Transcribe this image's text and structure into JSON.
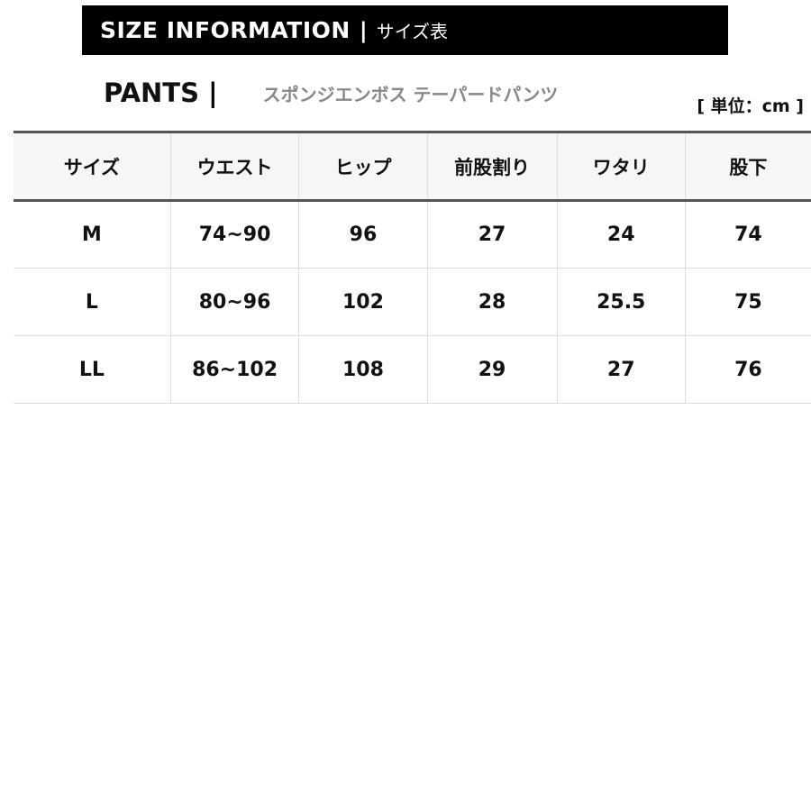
{
  "banner": {
    "title": "SIZE INFORMATION",
    "separator": "|",
    "subtitle": "サイズ表"
  },
  "product": {
    "category": "PANTS",
    "separator": "|",
    "name": "スポンジエンボス テーパードパンツ"
  },
  "unit": "[ 単位：cm ]",
  "table": {
    "headers": [
      "サイズ",
      "ウエスト",
      "ヒップ",
      "前股割り",
      "ワタリ",
      "股下"
    ],
    "rows": [
      [
        "M",
        "74~90",
        "96",
        "27",
        "24",
        "74"
      ],
      [
        "L",
        "80~96",
        "102",
        "28",
        "25.5",
        "75"
      ],
      [
        "LL",
        "86~102",
        "108",
        "29",
        "27",
        "76"
      ]
    ]
  }
}
